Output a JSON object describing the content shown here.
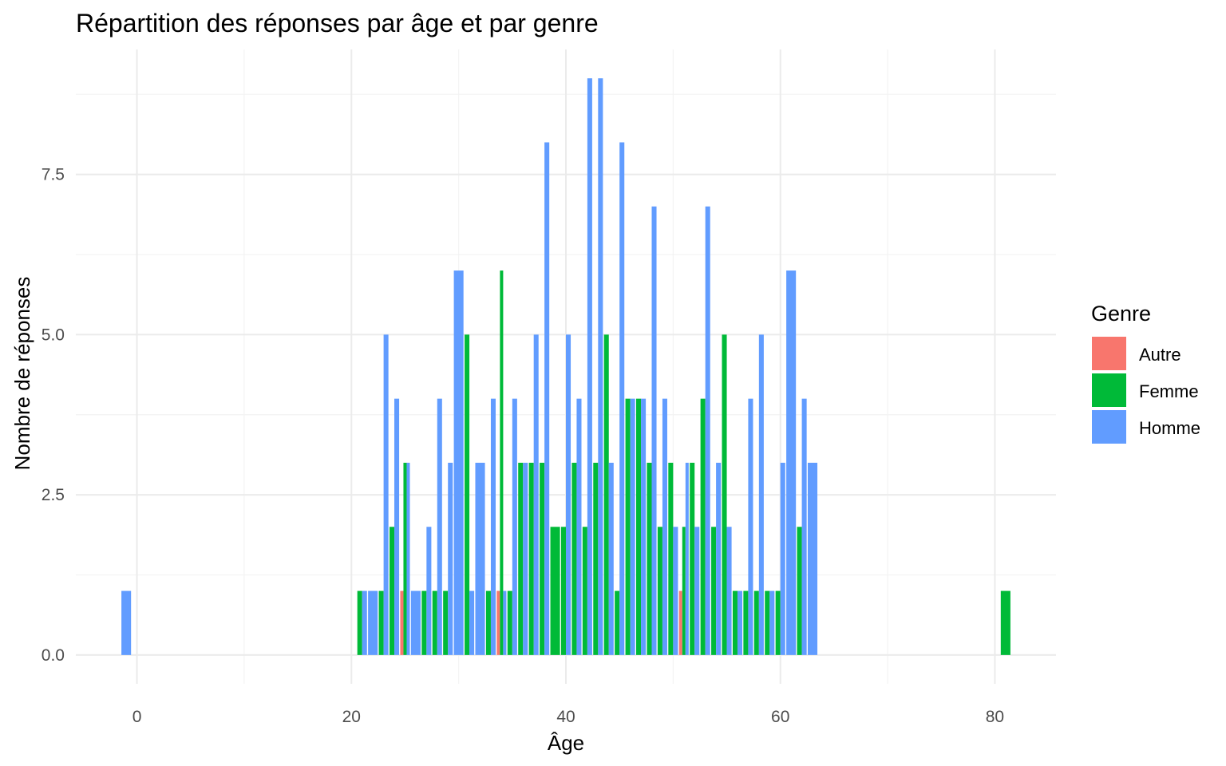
{
  "chart_data": {
    "type": "bar",
    "title": "Répartition des réponses par âge et par genre",
    "xlabel": "Âge",
    "ylabel": "Nombre de réponses",
    "xlim": [
      -5.7,
      85.7
    ],
    "ylim": [
      -0.45,
      9.45
    ],
    "x_ticks": [
      0,
      20,
      40,
      60,
      80
    ],
    "x_tick_labels": [
      "0",
      "20",
      "40",
      "60",
      "80"
    ],
    "y_ticks": [
      0,
      2.5,
      5,
      7.5
    ],
    "y_tick_labels": [
      "0.0",
      "2.5",
      "5.0",
      "7.5"
    ],
    "grid": true,
    "position": "dodge",
    "legend": {
      "title": "Genre",
      "placement": "right",
      "entries": [
        "Autre",
        "Femme",
        "Homme"
      ]
    },
    "colors": {
      "Autre": "#F8766D",
      "Femme": "#00BA38",
      "Homme": "#619CFF"
    },
    "data": [
      {
        "age": -1,
        "counts": {
          "Homme": 1
        }
      },
      {
        "age": 21,
        "counts": {
          "Femme": 1,
          "Homme": 1
        }
      },
      {
        "age": 22,
        "counts": {
          "Homme": 1
        }
      },
      {
        "age": 23,
        "counts": {
          "Femme": 1,
          "Homme": 5
        }
      },
      {
        "age": 24,
        "counts": {
          "Femme": 2,
          "Homme": 4
        }
      },
      {
        "age": 25,
        "counts": {
          "Autre": 1,
          "Femme": 3,
          "Homme": 3
        }
      },
      {
        "age": 26,
        "counts": {
          "Homme": 1
        }
      },
      {
        "age": 27,
        "counts": {
          "Femme": 1,
          "Homme": 2
        }
      },
      {
        "age": 28,
        "counts": {
          "Femme": 1,
          "Homme": 4
        }
      },
      {
        "age": 29,
        "counts": {
          "Femme": 1,
          "Homme": 3
        }
      },
      {
        "age": 30,
        "counts": {
          "Homme": 6
        }
      },
      {
        "age": 31,
        "counts": {
          "Femme": 5,
          "Homme": 1
        }
      },
      {
        "age": 32,
        "counts": {
          "Homme": 3
        }
      },
      {
        "age": 33,
        "counts": {
          "Femme": 1,
          "Homme": 4
        }
      },
      {
        "age": 34,
        "counts": {
          "Autre": 1,
          "Femme": 6,
          "Homme": 1
        }
      },
      {
        "age": 35,
        "counts": {
          "Femme": 1,
          "Homme": 4
        }
      },
      {
        "age": 36,
        "counts": {
          "Femme": 3,
          "Homme": 3
        }
      },
      {
        "age": 37,
        "counts": {
          "Femme": 3,
          "Homme": 5
        }
      },
      {
        "age": 38,
        "counts": {
          "Femme": 3,
          "Homme": 8
        }
      },
      {
        "age": 39,
        "counts": {
          "Femme": 2
        }
      },
      {
        "age": 40,
        "counts": {
          "Femme": 2,
          "Homme": 5
        }
      },
      {
        "age": 41,
        "counts": {
          "Femme": 3,
          "Homme": 4
        }
      },
      {
        "age": 42,
        "counts": {
          "Femme": 2,
          "Homme": 9
        }
      },
      {
        "age": 43,
        "counts": {
          "Femme": 3,
          "Homme": 9
        }
      },
      {
        "age": 44,
        "counts": {
          "Femme": 5,
          "Homme": 3
        }
      },
      {
        "age": 45,
        "counts": {
          "Femme": 1,
          "Homme": 8
        }
      },
      {
        "age": 46,
        "counts": {
          "Femme": 4,
          "Homme": 4
        }
      },
      {
        "age": 47,
        "counts": {
          "Femme": 4,
          "Homme": 4
        }
      },
      {
        "age": 48,
        "counts": {
          "Femme": 3,
          "Homme": 7
        }
      },
      {
        "age": 49,
        "counts": {
          "Femme": 2,
          "Homme": 4
        }
      },
      {
        "age": 50,
        "counts": {
          "Femme": 3,
          "Homme": 2
        }
      },
      {
        "age": 51,
        "counts": {
          "Autre": 1,
          "Femme": 2,
          "Homme": 3
        }
      },
      {
        "age": 52,
        "counts": {
          "Femme": 3,
          "Homme": 2
        }
      },
      {
        "age": 53,
        "counts": {
          "Femme": 4,
          "Homme": 7
        }
      },
      {
        "age": 54,
        "counts": {
          "Femme": 2,
          "Homme": 3
        }
      },
      {
        "age": 55,
        "counts": {
          "Femme": 5,
          "Homme": 2
        }
      },
      {
        "age": 56,
        "counts": {
          "Femme": 1,
          "Homme": 1
        }
      },
      {
        "age": 57,
        "counts": {
          "Femme": 1,
          "Homme": 4
        }
      },
      {
        "age": 58,
        "counts": {
          "Femme": 1,
          "Homme": 5
        }
      },
      {
        "age": 59,
        "counts": {
          "Femme": 1,
          "Homme": 1
        }
      },
      {
        "age": 60,
        "counts": {
          "Femme": 1,
          "Homme": 3
        }
      },
      {
        "age": 61,
        "counts": {
          "Homme": 6
        }
      },
      {
        "age": 62,
        "counts": {
          "Femme": 2,
          "Homme": 4
        }
      },
      {
        "age": 63,
        "counts": {
          "Homme": 3
        }
      },
      {
        "age": 81,
        "counts": {
          "Femme": 1
        }
      }
    ]
  }
}
